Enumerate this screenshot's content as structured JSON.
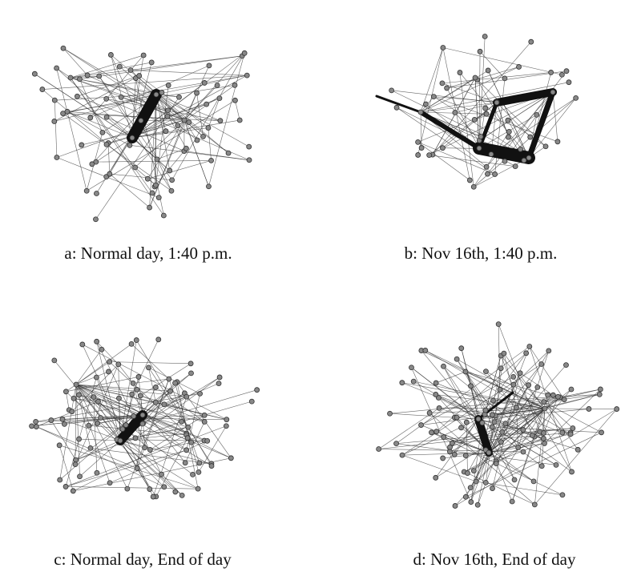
{
  "panels": [
    {
      "caption": "a: Normal day, 1:40 p.m."
    },
    {
      "caption": "b: Nov 16th, 1:40 p.m."
    },
    {
      "caption": "c: Normal day, End of day"
    },
    {
      "caption": "d: Nov 16th, End of day"
    }
  ]
}
